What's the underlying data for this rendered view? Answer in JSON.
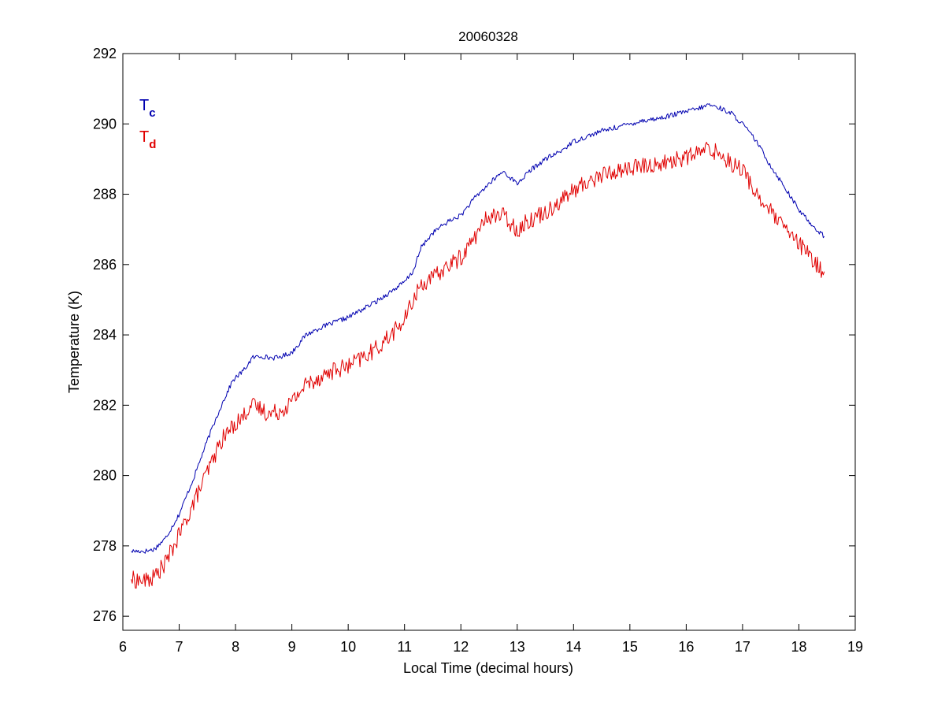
{
  "chart_data": {
    "type": "line",
    "title": "20060328",
    "xlabel": "Local Time (decimal hours)",
    "ylabel": "Temperature (K)",
    "xlim": [
      6,
      19
    ],
    "ylim": [
      275.6,
      292
    ],
    "x_ticks": [
      6,
      7,
      8,
      9,
      10,
      11,
      12,
      13,
      14,
      15,
      16,
      17,
      18,
      19
    ],
    "y_ticks": [
      276,
      278,
      280,
      282,
      284,
      286,
      288,
      290,
      292
    ],
    "grid": false,
    "legend_position": "top-left",
    "series": [
      {
        "name": "Tc",
        "label_main": "T",
        "label_sub": "c",
        "color": "#0000b0",
        "noise": 0.07,
        "x": [
          6.15,
          6.4,
          6.55,
          6.75,
          7.0,
          7.25,
          7.5,
          7.75,
          7.95,
          8.15,
          8.3,
          8.45,
          8.6,
          8.75,
          9.0,
          9.25,
          9.5,
          9.75,
          10.0,
          10.5,
          11.0,
          11.15,
          11.3,
          11.5,
          11.75,
          12.0,
          12.25,
          12.5,
          12.75,
          13.0,
          13.25,
          13.5,
          13.75,
          14.0,
          14.25,
          14.5,
          14.75,
          15.0,
          15.25,
          15.5,
          15.75,
          16.0,
          16.25,
          16.4,
          16.6,
          16.8,
          17.0,
          17.25,
          17.5,
          17.75,
          18.0,
          18.25,
          18.45
        ],
        "y": [
          277.85,
          277.85,
          277.9,
          278.2,
          278.9,
          279.9,
          281.0,
          282.0,
          282.7,
          283.0,
          283.35,
          283.4,
          283.35,
          283.35,
          283.5,
          284.0,
          284.2,
          284.35,
          284.5,
          284.95,
          285.5,
          285.8,
          286.5,
          286.9,
          287.2,
          287.4,
          287.9,
          288.3,
          288.65,
          288.3,
          288.7,
          289.0,
          289.2,
          289.5,
          289.65,
          289.8,
          289.9,
          290.0,
          290.1,
          290.15,
          290.25,
          290.35,
          290.45,
          290.55,
          290.45,
          290.3,
          290.0,
          289.5,
          288.8,
          288.2,
          287.55,
          287.1,
          286.8
        ]
      },
      {
        "name": "Td",
        "label_main": "T",
        "label_sub": "d",
        "color": "#e00000",
        "noise": 0.25,
        "x": [
          6.15,
          6.4,
          6.55,
          6.75,
          7.0,
          7.25,
          7.5,
          7.75,
          8.0,
          8.15,
          8.25,
          8.45,
          8.6,
          8.8,
          9.0,
          9.25,
          9.5,
          9.75,
          10.0,
          10.5,
          11.0,
          11.15,
          11.3,
          11.5,
          11.75,
          12.0,
          12.25,
          12.5,
          12.75,
          13.0,
          13.25,
          13.5,
          13.75,
          14.0,
          14.25,
          14.5,
          14.75,
          15.0,
          15.25,
          15.5,
          15.75,
          16.0,
          16.25,
          16.4,
          16.6,
          16.8,
          17.0,
          17.25,
          17.5,
          17.75,
          18.0,
          18.25,
          18.45
        ],
        "y": [
          277.05,
          277.0,
          277.1,
          277.5,
          278.3,
          279.2,
          280.1,
          281.0,
          281.5,
          281.7,
          282.0,
          281.9,
          281.75,
          281.85,
          282.1,
          282.6,
          282.8,
          283.0,
          283.1,
          283.6,
          284.4,
          285.0,
          285.45,
          285.6,
          285.95,
          286.2,
          286.8,
          287.4,
          287.4,
          287.0,
          287.3,
          287.5,
          287.8,
          288.1,
          288.35,
          288.55,
          288.65,
          288.75,
          288.8,
          288.85,
          288.95,
          289.05,
          289.2,
          289.3,
          289.15,
          288.9,
          288.7,
          288.0,
          287.5,
          287.0,
          286.6,
          286.1,
          285.8
        ]
      }
    ]
  }
}
